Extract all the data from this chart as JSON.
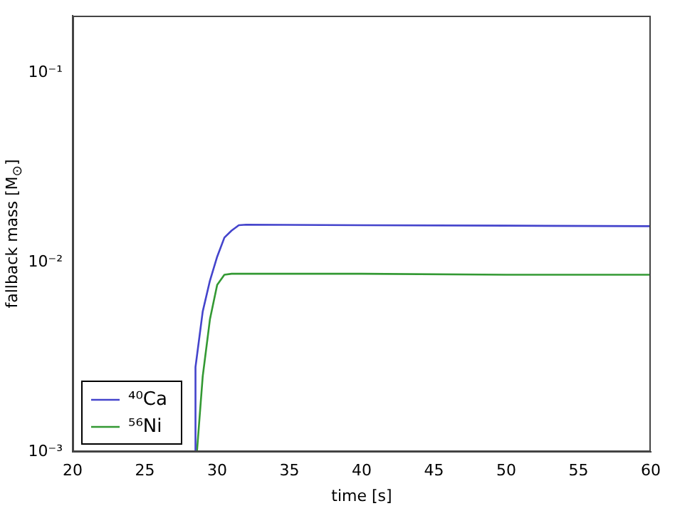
{
  "chart_data": {
    "type": "line",
    "xlabel": "time [s]",
    "ylabel": "fallback mass [M$_{⊙}$]",
    "xlim": [
      20,
      60
    ],
    "xticks": [
      20,
      25,
      30,
      35,
      40,
      45,
      50,
      55,
      60
    ],
    "ylim": [
      0.001,
      0.2
    ],
    "yticks": [
      {
        "value": 0.001,
        "label": "10⁻³"
      },
      {
        "value": 0.01,
        "label": "10⁻²"
      },
      {
        "value": 0.1,
        "label": "10⁻¹"
      }
    ],
    "log": "y",
    "grid": false,
    "legend": "bottom left",
    "marker": "none",
    "line_style": "solid",
    "series": [
      {
        "name": "⁴⁰Ca",
        "color": "#4444cc",
        "x": [
          28.5,
          28.5,
          29,
          29.5,
          30,
          30.5,
          31,
          31.5,
          32,
          40,
          50,
          60
        ],
        "values": [
          0.001,
          0.0028,
          0.0055,
          0.008,
          0.0107,
          0.0135,
          0.0147,
          0.0157,
          0.0158,
          0.0157,
          0.0156,
          0.0155
        ]
      },
      {
        "name": "⁵⁶Ni",
        "color": "#339933",
        "x": [
          28.6,
          29,
          29.5,
          30,
          30.5,
          31,
          40,
          50,
          60
        ],
        "values": [
          0.001,
          0.0025,
          0.005,
          0.0076,
          0.0086,
          0.0087,
          0.0087,
          0.0086,
          0.0086
        ]
      }
    ]
  }
}
